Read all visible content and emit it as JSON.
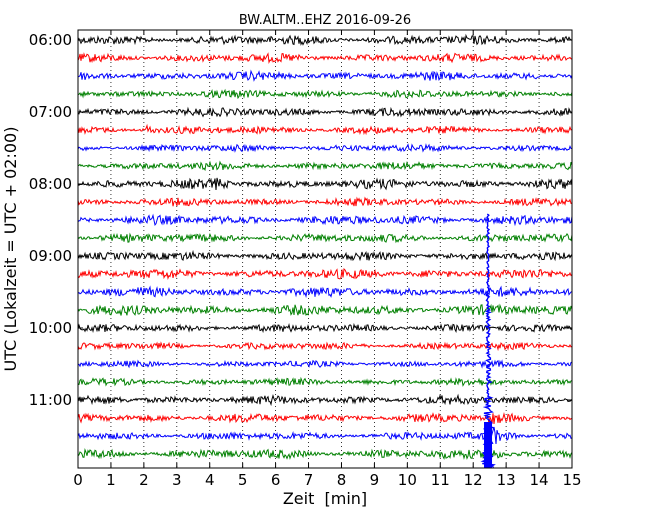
{
  "chart_data": {
    "type": "line",
    "title": "BW.ALTM..EHZ 2016-09-26",
    "xlabel": "Zeit  [min]",
    "ylabel": "UTC (Lokalzeit = UTC + 02:00)",
    "xlim": [
      0,
      15
    ],
    "x_ticks": [
      "0",
      "1",
      "2",
      "3",
      "4",
      "5",
      "6",
      "7",
      "8",
      "9",
      "10",
      "11",
      "12",
      "13",
      "14",
      "15"
    ],
    "y_ticks": [
      "06:00",
      "07:00",
      "08:00",
      "09:00",
      "10:00",
      "11:00"
    ],
    "grid": "vertical dotted lines at each minute",
    "row_interval_minutes": 15,
    "row_start_times": [
      "06:00",
      "06:15",
      "06:30",
      "06:45",
      "07:00",
      "07:15",
      "07:30",
      "07:45",
      "08:00",
      "08:15",
      "08:30",
      "08:45",
      "09:00",
      "09:15",
      "09:30",
      "09:45",
      "10:00",
      "10:15",
      "10:30",
      "10:45",
      "11:00",
      "11:15",
      "11:30",
      "11:45"
    ],
    "row_colors": [
      "#000000",
      "#ff0000",
      "#0000ff",
      "#008000"
    ],
    "row_relative_amplitude": [
      1.2,
      1.1,
      1.1,
      1.0,
      1.1,
      1.0,
      0.9,
      1.0,
      1.2,
      1.0,
      1.2,
      1.1,
      1.1,
      1.2,
      1.2,
      1.3,
      1.0,
      0.9,
      0.8,
      0.9,
      1.1,
      1.1,
      1.0,
      1.2
    ],
    "transient_events": [
      {
        "row": 5,
        "minute": 2.1,
        "strength": 4
      },
      {
        "row": 8,
        "minute": 4.2,
        "strength": 3
      },
      {
        "row": 13,
        "minute": 10.6,
        "strength": 3
      }
    ],
    "main_event": {
      "onset_minute": 12.45,
      "onset_time": "11:15",
      "peak_row": 22,
      "spike_extent_rows": [
        10,
        23
      ]
    }
  }
}
